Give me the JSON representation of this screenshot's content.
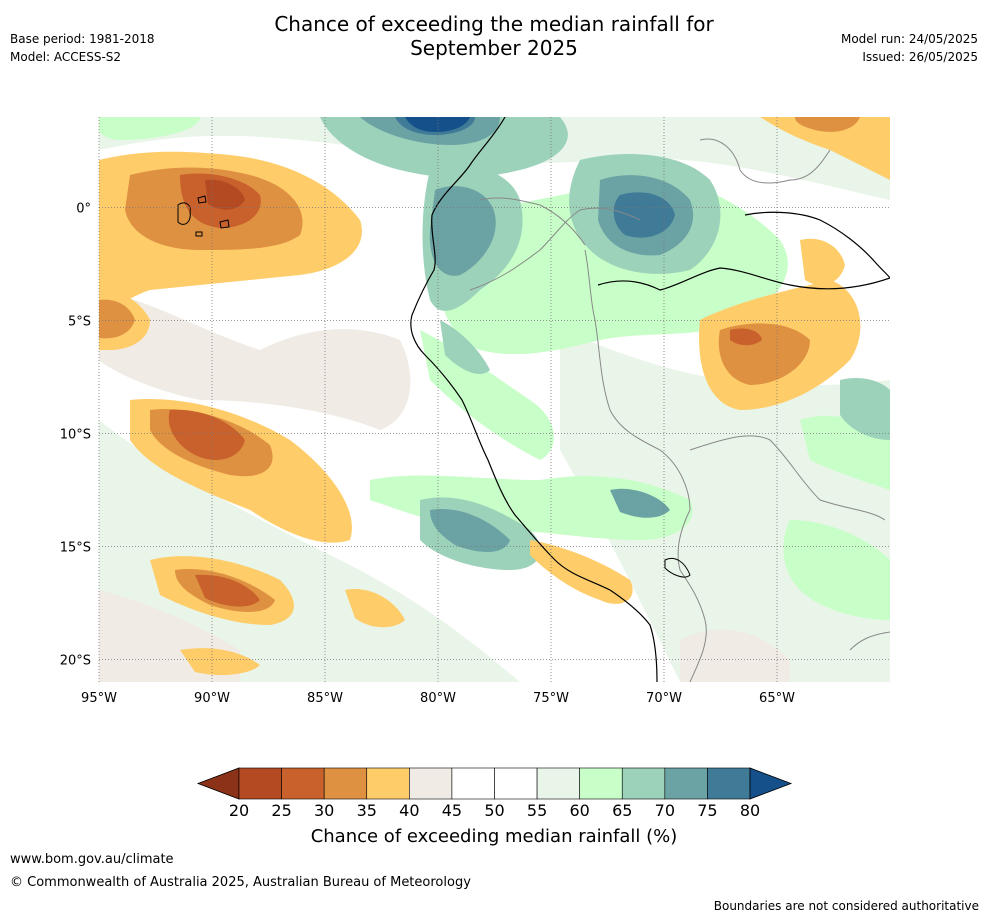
{
  "header": {
    "title_line1": "Chance of exceeding the median rainfall for",
    "title_line2": "September 2025",
    "base_period": "Base period: 1981-2018",
    "model": "Model: ACCESS-S2",
    "model_run": "Model run: 24/05/2025",
    "issued": "Issued: 26/05/2025"
  },
  "map": {
    "lon_range": [
      -95,
      -60
    ],
    "lat_range": [
      -21,
      4
    ],
    "lon_ticks": [
      {
        "value": -95,
        "label": "95°W"
      },
      {
        "value": -90,
        "label": "90°W"
      },
      {
        "value": -85,
        "label": "85°W"
      },
      {
        "value": -80,
        "label": "80°W"
      },
      {
        "value": -75,
        "label": "75°W"
      },
      {
        "value": -70,
        "label": "70°W"
      },
      {
        "value": -65,
        "label": "65°W"
      }
    ],
    "lat_ticks": [
      {
        "value": 0,
        "label": "0°"
      },
      {
        "value": -5,
        "label": "5°S"
      },
      {
        "value": -10,
        "label": "10°S"
      },
      {
        "value": -15,
        "label": "15°S"
      },
      {
        "value": -20,
        "label": "20°S"
      }
    ],
    "gridlines": "dotted"
  },
  "colorbar": {
    "label": "Chance of exceeding median rainfall (%)",
    "ticks": [
      "20",
      "25",
      "30",
      "35",
      "40",
      "45",
      "50",
      "55",
      "60",
      "65",
      "70",
      "75",
      "80"
    ],
    "colors": [
      "#b34a22",
      "#c8612b",
      "#df9142",
      "#fecd6a",
      "#f0ebe4",
      "#ffffff",
      "#ffffff",
      "#e9f5e8",
      "#c8fec8",
      "#9dd2ba",
      "#6ba3a5",
      "#3f7a97"
    ],
    "under_color": "#8b3218",
    "over_color": "#15508a"
  },
  "footer": {
    "url": "www.bom.gov.au/climate",
    "copyright": "© Commonwealth of Australia 2025, Australian Bureau of Meteorology",
    "disclaimer": "Boundaries are not considered authoritative"
  }
}
